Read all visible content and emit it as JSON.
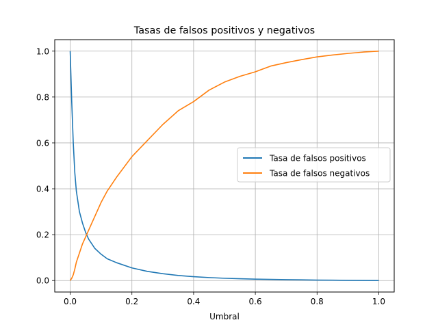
{
  "chart_data": {
    "type": "line",
    "title": "Tasas de falsos positivos y negativos",
    "xlabel": "Umbral",
    "ylabel": "",
    "xlim": [
      -0.05,
      1.05
    ],
    "ylim": [
      -0.05,
      1.05
    ],
    "x_ticks": [
      "0.0",
      "0.2",
      "0.4",
      "0.6",
      "0.8",
      "1.0"
    ],
    "y_ticks": [
      "0.0",
      "0.2",
      "0.4",
      "0.6",
      "0.8",
      "1.0"
    ],
    "grid": true,
    "legend_position": "center-right",
    "x": [
      0.0,
      0.005,
      0.01,
      0.015,
      0.02,
      0.03,
      0.04,
      0.05,
      0.06,
      0.07,
      0.08,
      0.1,
      0.12,
      0.15,
      0.2,
      0.25,
      0.3,
      0.35,
      0.4,
      0.45,
      0.5,
      0.55,
      0.6,
      0.65,
      0.7,
      0.75,
      0.8,
      0.85,
      0.9,
      0.95,
      1.0
    ],
    "series": [
      {
        "name": "Tasa de falsos positivos",
        "color": "#1f77b4",
        "values": [
          1.0,
          0.78,
          0.6,
          0.47,
          0.39,
          0.3,
          0.25,
          0.21,
          0.18,
          0.16,
          0.14,
          0.115,
          0.095,
          0.078,
          0.055,
          0.04,
          0.03,
          0.022,
          0.017,
          0.013,
          0.01,
          0.008,
          0.006,
          0.005,
          0.004,
          0.003,
          0.002,
          0.0015,
          0.001,
          0.0005,
          0.0
        ]
      },
      {
        "name": "Tasa de falsos negativos",
        "color": "#ff7f0e",
        "values": [
          0.0,
          0.01,
          0.025,
          0.05,
          0.08,
          0.12,
          0.16,
          0.19,
          0.22,
          0.25,
          0.28,
          0.34,
          0.39,
          0.45,
          0.54,
          0.61,
          0.68,
          0.74,
          0.78,
          0.83,
          0.865,
          0.89,
          0.91,
          0.935,
          0.95,
          0.963,
          0.975,
          0.983,
          0.99,
          0.996,
          1.0
        ]
      }
    ]
  }
}
